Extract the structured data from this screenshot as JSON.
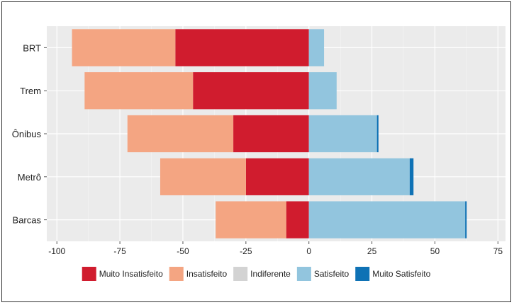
{
  "chart_data": {
    "type": "bar",
    "orientation": "horizontal",
    "stacked": "diverging",
    "categories": [
      "BRT",
      "Trem",
      "Ônibus",
      "Metrô",
      "Barcas"
    ],
    "series": [
      {
        "name": "Muito Insatisfeito",
        "color": "#d01c2e",
        "values": [
          -53,
          -46,
          -30,
          -25,
          -9
        ]
      },
      {
        "name": "Insatisfeito",
        "color": "#f4a582",
        "values": [
          -41,
          -43,
          -42,
          -34,
          -28
        ]
      },
      {
        "name": "Indiferente",
        "color": "#d3d3d3",
        "values": [
          0,
          0,
          0,
          0,
          0
        ]
      },
      {
        "name": "Satisfeito",
        "color": "#92c5de",
        "values": [
          6,
          11,
          27,
          40,
          62
        ]
      },
      {
        "name": "Muito Satisfeito",
        "color": "#0f72b5",
        "values": [
          0,
          0,
          0.6,
          1.5,
          0.6
        ]
      }
    ],
    "x_ticks": [
      -100,
      -75,
      -50,
      -25,
      0,
      25,
      50,
      75
    ],
    "xlim": [
      -104,
      78
    ],
    "grid": true,
    "legend_position": "bottom",
    "title": "",
    "xlabel": "",
    "ylabel": ""
  }
}
